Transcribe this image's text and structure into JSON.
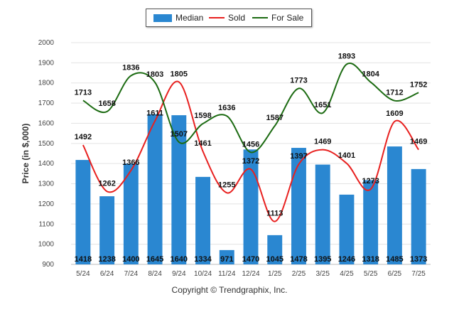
{
  "chart_data": {
    "type": "bar",
    "categories": [
      "5/24",
      "6/24",
      "7/24",
      "8/24",
      "9/24",
      "10/24",
      "11/24",
      "12/24",
      "1/25",
      "2/25",
      "3/25",
      "4/25",
      "5/25",
      "6/25",
      "7/25"
    ],
    "series": [
      {
        "name": "Median",
        "kind": "bar",
        "color": "#2a87d1",
        "values": [
          1418,
          1238,
          1400,
          1645,
          1640,
          1334,
          971,
          1470,
          1045,
          1478,
          1395,
          1246,
          1318,
          1485,
          1373
        ]
      },
      {
        "name": "Sold",
        "kind": "line",
        "color": "#e8201f",
        "values": [
          1492,
          1262,
          1366,
          1611,
          1805,
          1461,
          1255,
          1372,
          1113,
          1397,
          1469,
          1401,
          1273,
          1609,
          1469
        ]
      },
      {
        "name": "For Sale",
        "kind": "line",
        "color": "#1c6b12",
        "values": [
          1713,
          1658,
          1836,
          1803,
          1507,
          1598,
          1636,
          1456,
          1587,
          1773,
          1651,
          1893,
          1804,
          1712,
          1752
        ]
      }
    ],
    "ylabel": "Price (in $,000)",
    "ylim": [
      900,
      2000
    ],
    "yticks": [
      900,
      1000,
      1100,
      1200,
      1300,
      1400,
      1500,
      1600,
      1700,
      1800,
      1900,
      2000
    ],
    "grid": true,
    "legend": "top-center"
  },
  "footer": {
    "copyright": "Copyright © Trendgraphix, Inc."
  }
}
